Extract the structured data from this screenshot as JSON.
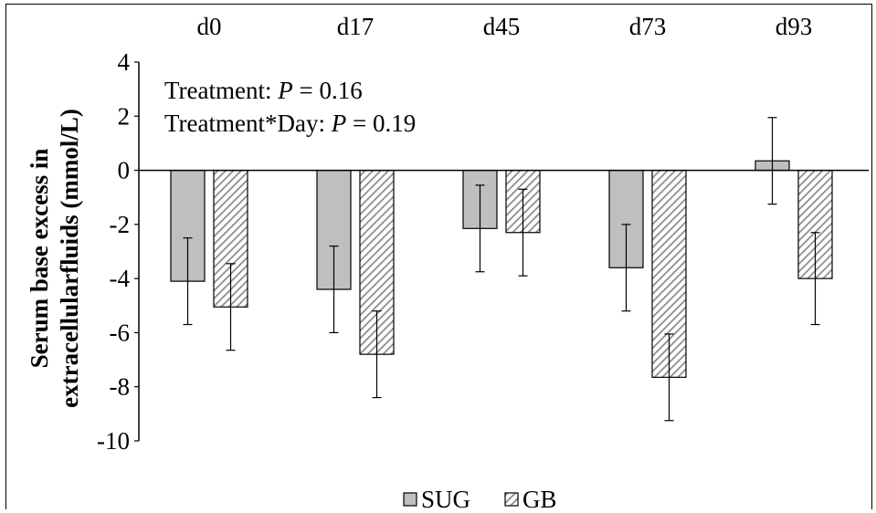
{
  "chart_data": {
    "type": "bar",
    "categories": [
      "d0",
      "d17",
      "d45",
      "d73",
      "d93"
    ],
    "series": [
      {
        "name": "SUG",
        "values": [
          -4.1,
          -4.4,
          -2.15,
          -3.6,
          0.35
        ],
        "errors": [
          1.6,
          1.6,
          1.6,
          1.6,
          1.6
        ],
        "color": "#bfbfbf",
        "pattern": "solid"
      },
      {
        "name": "GB",
        "values": [
          -5.05,
          -6.8,
          -2.3,
          -7.65,
          -4.0
        ],
        "errors": [
          1.6,
          1.6,
          1.6,
          1.6,
          1.7
        ],
        "color": "#a6a6a6",
        "pattern": "diagonal-hatch"
      }
    ],
    "ylabel_line1": "Serum base excess in",
    "ylabel_line2": "extracellularfluids (mmol/L)",
    "yticks": [
      4,
      2,
      0,
      -2,
      -4,
      -6,
      -8,
      -10
    ],
    "ylim": [
      -10,
      4
    ],
    "annotations": [
      {
        "prefix": "Treatment: ",
        "stat": "P",
        "suffix": " = 0.16"
      },
      {
        "prefix": "Treatment*Day: ",
        "stat": "P",
        "suffix": " = 0.19"
      }
    ],
    "legend_position": "bottom",
    "grid": false
  }
}
